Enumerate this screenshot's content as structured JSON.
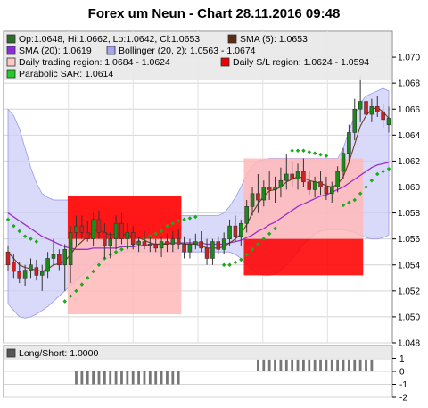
{
  "chart_data": {
    "type": "candlestick",
    "title": "Forex um Neun - Chart 28.11.2016 09:48",
    "ylim": [
      1.048,
      1.072
    ],
    "yticks": [
      "1.070",
      "1.068",
      "1.066",
      "1.064",
      "1.062",
      "1.060",
      "1.058",
      "1.056",
      "1.054",
      "1.052",
      "1.050",
      "1.048"
    ],
    "colors": {
      "up": "#1a8a1a",
      "down": "#cc2222",
      "sma5": "#6b3a1a",
      "sma20": "#9b30c8",
      "bb_fill": "#cccdf8",
      "sl_region": "#ff0000",
      "trading_region": "#ffb8b8",
      "sar": "#1aaa1a"
    },
    "legend": [
      {
        "swatch": "#2d6e2d",
        "label": "Op:1.0648, Hi:1.0662, Lo:1.0642, Cl:1.0653"
      },
      {
        "swatch": "#5a2d12",
        "label": "SMA (5): 1.0653"
      },
      {
        "swatch": "#8a2be2",
        "label": "SMA (20): 1.0619"
      },
      {
        "swatch": "#a4a4f0",
        "label": "Bollinger (20, 2): 1.0563 - 1.0674"
      },
      {
        "swatch": "#ffc8c8",
        "label": "Daily trading region: 1.0684 - 1.0624"
      },
      {
        "swatch": "#ee0000",
        "label": "Daily S/L region: 1.0624 - 1.0594"
      },
      {
        "swatch": "#22cc22",
        "label": "Parabolic SAR: 1.0614"
      }
    ],
    "candles": [
      [
        1.055,
        1.0555,
        1.0535,
        1.054
      ],
      [
        1.0542,
        1.0548,
        1.053,
        1.0535
      ],
      [
        1.0535,
        1.0542,
        1.0526,
        1.053
      ],
      [
        1.053,
        1.054,
        1.0524,
        1.0536
      ],
      [
        1.0536,
        1.0545,
        1.053,
        1.054
      ],
      [
        1.0538,
        1.0544,
        1.0528,
        1.0532
      ],
      [
        1.0532,
        1.054,
        1.052,
        1.0535
      ],
      [
        1.0535,
        1.055,
        1.053,
        1.0545
      ],
      [
        1.0545,
        1.056,
        1.054,
        1.0548
      ],
      [
        1.0548,
        1.0552,
        1.0536,
        1.054
      ],
      [
        1.054,
        1.0556,
        1.052,
        1.0552
      ],
      [
        1.054,
        1.057,
        1.0526,
        1.0565
      ],
      [
        1.0565,
        1.0578,
        1.0555,
        1.057
      ],
      [
        1.057,
        1.0578,
        1.056,
        1.0565
      ],
      [
        1.0565,
        1.0574,
        1.0558,
        1.056
      ],
      [
        1.056,
        1.058,
        1.0555,
        1.0575
      ],
      [
        1.0575,
        1.0582,
        1.056,
        1.0565
      ],
      [
        1.0565,
        1.0572,
        1.0545,
        1.0555
      ],
      [
        1.0555,
        1.0565,
        1.0545,
        1.056
      ],
      [
        1.056,
        1.0578,
        1.0552,
        1.0572
      ],
      [
        1.0572,
        1.058,
        1.0556,
        1.056
      ],
      [
        1.056,
        1.0572,
        1.0552,
        1.0565
      ],
      [
        1.0565,
        1.057,
        1.0552,
        1.0556
      ],
      [
        1.0556,
        1.0562,
        1.055,
        1.0558
      ],
      [
        1.0558,
        1.0566,
        1.0552,
        1.0555
      ],
      [
        1.0555,
        1.0562,
        1.055,
        1.0556
      ],
      [
        1.0556,
        1.056,
        1.055,
        1.0553
      ],
      [
        1.0553,
        1.0562,
        1.0546,
        1.0558
      ],
      [
        1.0558,
        1.0564,
        1.055,
        1.0556
      ],
      [
        1.0556,
        1.0566,
        1.055,
        1.056
      ],
      [
        1.056,
        1.0568,
        1.0552,
        1.0556
      ],
      [
        1.0556,
        1.0562,
        1.0545,
        1.055
      ],
      [
        1.055,
        1.056,
        1.0545,
        1.0556
      ],
      [
        1.0556,
        1.0564,
        1.0552,
        1.0558
      ],
      [
        1.0558,
        1.0566,
        1.055,
        1.0553
      ],
      [
        1.0553,
        1.056,
        1.054,
        1.0545
      ],
      [
        1.0545,
        1.056,
        1.054,
        1.0558
      ],
      [
        1.0558,
        1.0562,
        1.0548,
        1.0552
      ],
      [
        1.0552,
        1.0565,
        1.0548,
        1.056
      ],
      [
        1.056,
        1.0575,
        1.0555,
        1.057
      ],
      [
        1.057,
        1.0578,
        1.0558,
        1.0562
      ],
      [
        1.0562,
        1.0575,
        1.0555,
        1.0572
      ],
      [
        1.0572,
        1.059,
        1.0565,
        1.0585
      ],
      [
        1.0585,
        1.06,
        1.0578,
        1.0595
      ],
      [
        1.0595,
        1.061,
        1.058,
        1.059
      ],
      [
        1.059,
        1.0605,
        1.0585,
        1.06
      ],
      [
        1.06,
        1.0612,
        1.059,
        1.0598
      ],
      [
        1.0598,
        1.0608,
        1.0588,
        1.06
      ],
      [
        1.06,
        1.0615,
        1.0592,
        1.0605
      ],
      [
        1.0605,
        1.0625,
        1.0598,
        1.061
      ],
      [
        1.061,
        1.062,
        1.06,
        1.0606
      ],
      [
        1.0606,
        1.0618,
        1.0598,
        1.0612
      ],
      [
        1.0612,
        1.0622,
        1.06,
        1.0604
      ],
      [
        1.0604,
        1.0612,
        1.0594,
        1.0598
      ],
      [
        1.0598,
        1.0608,
        1.0592,
        1.0604
      ],
      [
        1.0604,
        1.0612,
        1.0594,
        1.06
      ],
      [
        1.06,
        1.0608,
        1.059,
        1.0595
      ],
      [
        1.0595,
        1.0604,
        1.0588,
        1.06
      ],
      [
        1.06,
        1.0616,
        1.0596,
        1.0612
      ],
      [
        1.0612,
        1.063,
        1.0606,
        1.0626
      ],
      [
        1.0626,
        1.0648,
        1.062,
        1.0642
      ],
      [
        1.0642,
        1.0668,
        1.0636,
        1.066
      ],
      [
        1.066,
        1.0686,
        1.065,
        1.0666
      ],
      [
        1.0666,
        1.0672,
        1.065,
        1.0656
      ],
      [
        1.0656,
        1.0668,
        1.065,
        1.0662
      ],
      [
        1.0662,
        1.067,
        1.0654,
        1.0658
      ],
      [
        1.0658,
        1.0664,
        1.0646,
        1.0652
      ],
      [
        1.0648,
        1.0662,
        1.0642,
        1.0653
      ]
    ],
    "sma5": [
      1.055,
      1.0545,
      1.054,
      1.0538,
      1.0537,
      1.0536,
      1.0535,
      1.0537,
      1.054,
      1.0541,
      1.0543,
      1.0548,
      1.0554,
      1.0558,
      1.0562,
      1.0566,
      1.0567,
      1.0565,
      1.0563,
      1.0564,
      1.0564,
      1.0563,
      1.0562,
      1.0561,
      1.0559,
      1.0557,
      1.0556,
      1.0556,
      1.0556,
      1.0557,
      1.0557,
      1.0556,
      1.0556,
      1.0556,
      1.0555,
      1.0553,
      1.0553,
      1.0553,
      1.0554,
      1.0557,
      1.056,
      1.0564,
      1.0571,
      1.058,
      1.0587,
      1.0593,
      1.0597,
      1.0598,
      1.06,
      1.0604,
      1.0606,
      1.0608,
      1.0607,
      1.0605,
      1.0604,
      1.0603,
      1.0601,
      1.06,
      1.0602,
      1.0608,
      1.0619,
      1.0633,
      1.0647,
      1.0655,
      1.066,
      1.0661,
      1.0658,
      1.0653
    ],
    "sma20": [
      1.058,
      1.0577,
      1.0574,
      1.0571,
      1.0568,
      1.0565,
      1.0562,
      1.056,
      1.0558,
      1.0556,
      1.0554,
      1.0553,
      1.0552,
      1.0552,
      1.0552,
      1.0553,
      1.0553,
      1.0553,
      1.0553,
      1.0553,
      1.0554,
      1.0554,
      1.0554,
      1.0555,
      1.0555,
      1.0556,
      1.0556,
      1.0556,
      1.0557,
      1.0557,
      1.0557,
      1.0557,
      1.0557,
      1.0557,
      1.0557,
      1.0556,
      1.0556,
      1.0556,
      1.0556,
      1.0557,
      1.0558,
      1.0559,
      1.0561,
      1.0563,
      1.0566,
      1.0568,
      1.0571,
      1.0573,
      1.0576,
      1.0579,
      1.0582,
      1.0585,
      1.0587,
      1.0589,
      1.0591,
      1.0593,
      1.0594,
      1.0596,
      1.0598,
      1.06,
      1.0603,
      1.0606,
      1.0609,
      1.0612,
      1.0615,
      1.0617,
      1.0618,
      1.0619
    ],
    "bb_upper": [
      1.066,
      1.0655,
      1.0645,
      1.063,
      1.0615,
      1.0603,
      1.0595,
      1.0592,
      1.059,
      1.059,
      1.059,
      1.059,
      1.059,
      1.059,
      1.059,
      1.059,
      1.0588,
      1.0586,
      1.0584,
      1.0582,
      1.058,
      1.0578,
      1.0578,
      1.0578,
      1.0578,
      1.0578,
      1.0578,
      1.0578,
      1.0578,
      1.0578,
      1.0578,
      1.0578,
      1.0578,
      1.0578,
      1.0578,
      1.0578,
      1.0578,
      1.0578,
      1.058,
      1.0585,
      1.0592,
      1.06,
      1.061,
      1.0616,
      1.062,
      1.0621,
      1.0622,
      1.0622,
      1.0622,
      1.0622,
      1.0622,
      1.0622,
      1.0622,
      1.0622,
      1.0622,
      1.0622,
      1.0622,
      1.0622,
      1.0622,
      1.063,
      1.0643,
      1.0655,
      1.0665,
      1.067,
      1.0672,
      1.0674,
      1.0676,
      1.0674
    ],
    "bb_lower": [
      1.051,
      1.0505,
      1.05,
      1.0499,
      1.05,
      1.0502,
      1.0505,
      1.0508,
      1.0512,
      1.0516,
      1.052,
      1.0524,
      1.0528,
      1.0532,
      1.0536,
      1.054,
      1.0542,
      1.0544,
      1.0546,
      1.0548,
      1.055,
      1.055,
      1.055,
      1.055,
      1.055,
      1.055,
      1.055,
      1.055,
      1.055,
      1.055,
      1.055,
      1.055,
      1.055,
      1.055,
      1.055,
      1.055,
      1.055,
      1.055,
      1.055,
      1.055,
      1.0548,
      1.0545,
      1.054,
      1.0536,
      1.0533,
      1.0532,
      1.0532,
      1.0533,
      1.0536,
      1.054,
      1.0545,
      1.055,
      1.0556,
      1.056,
      1.0564,
      1.0566,
      1.0567,
      1.0567,
      1.0567,
      1.0567,
      1.0566,
      1.0565,
      1.0563,
      1.0561,
      1.056,
      1.056,
      1.0561,
      1.0563
    ],
    "sar": [
      1.0575,
      1.057,
      1.0566,
      1.0562,
      1.056,
      1.0558,
      null,
      null,
      null,
      null,
      1.0512,
      1.0516,
      1.052,
      1.0525,
      1.053,
      1.0535,
      1.054,
      1.0545,
      1.0548,
      1.055,
      1.0552,
      1.0554,
      1.0556,
      1.0558,
      1.056,
      1.0562,
      1.0564,
      1.0566,
      1.057,
      1.0572,
      1.0574,
      1.0575,
      1.0576,
      1.0577,
      null,
      null,
      null,
      null,
      1.054,
      1.054,
      1.0542,
      1.0544,
      1.0548,
      1.0552,
      1.0556,
      1.056,
      1.0564,
      1.0568,
      null,
      null,
      1.0628,
      1.0628,
      1.0628,
      1.0627,
      1.0626,
      1.0625,
      1.0624,
      null,
      null,
      1.0586,
      1.0588,
      1.059,
      1.0595,
      1.06,
      1.0605,
      1.061,
      1.0612,
      1.0614
    ],
    "trading_regions": [
      {
        "from": 11,
        "to": 30,
        "low": 1.0502,
        "high": 1.0593
      },
      {
        "from": 42,
        "to": 62,
        "low": 1.056,
        "high": 1.0622
      }
    ],
    "sl_regions": [
      {
        "from": 11,
        "to": 30,
        "low": 1.056,
        "high": 1.0593
      },
      {
        "from": 42,
        "to": 62,
        "low": 1.0532,
        "high": 1.056
      }
    ],
    "sub_chart": {
      "legend": "Long/Short: 1.0000",
      "ylim": [
        -2,
        2
      ],
      "yticks": [
        "1",
        "0",
        "-1",
        "-2"
      ],
      "bars": [
        {
          "from": 12,
          "to": 30,
          "value": -1
        },
        {
          "from": 44,
          "to": 64,
          "value": 1
        }
      ]
    }
  }
}
